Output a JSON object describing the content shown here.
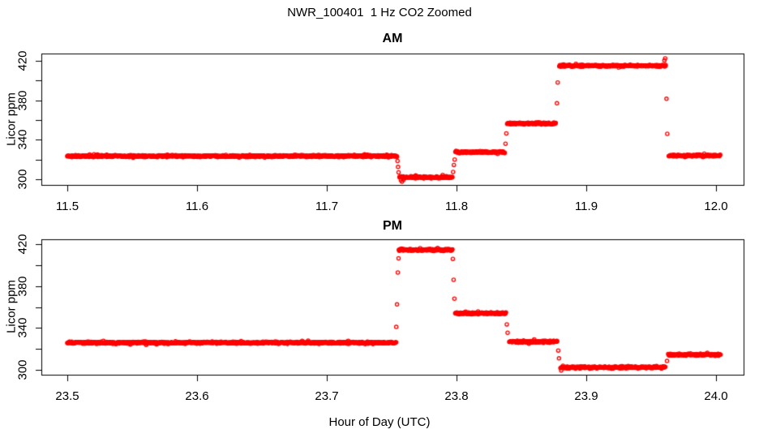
{
  "main_title": "NWR_100401  1 Hz CO2 Zoomed",
  "xlabel": "Hour of Day (UTC)",
  "background_color": "#FFFFFF",
  "axis_color": "#000000",
  "point_color": "#FF0000",
  "chart_data": [
    {
      "type": "scatter",
      "panel": "AM",
      "title": "AM",
      "ylabel": "Licor ppm",
      "marker": "open-circle",
      "sample_rate_hz": 1,
      "noise_ppm": 0.9,
      "xlim": [
        11.48,
        12.021
      ],
      "ylim": [
        294.3,
        427.4
      ],
      "xticks": [
        "11.5",
        "11.6",
        "11.7",
        "11.8",
        "11.9",
        "12.0"
      ],
      "yticks_major": [
        300,
        340,
        380,
        420
      ],
      "yticks_minor": [
        320,
        360,
        400
      ],
      "segments": [
        {
          "x_start": 11.5,
          "x_end": 11.754,
          "value": 323.5
        },
        {
          "x_start": 11.756,
          "x_end": 11.7965,
          "value": 302.0
        },
        {
          "x_start": 11.799,
          "x_end": 11.837,
          "value": 327.5
        },
        {
          "x_start": 11.839,
          "x_end": 11.8765,
          "value": 356.5
        },
        {
          "x_start": 11.879,
          "x_end": 11.961,
          "value": 415.0
        },
        {
          "x_start": 11.9635,
          "x_end": 12.003,
          "value": 324.0
        }
      ],
      "transition_points": [
        [
          11.7544,
          318.5
        ],
        [
          11.7548,
          312.5
        ],
        [
          11.7552,
          307.0
        ],
        [
          11.757,
          299.0
        ],
        [
          11.7578,
          297.5
        ],
        [
          11.759,
          299.5
        ],
        [
          11.7972,
          307.5
        ],
        [
          11.7978,
          314.5
        ],
        [
          11.7984,
          320.0
        ],
        [
          11.8376,
          336.0
        ],
        [
          11.8382,
          346.5
        ],
        [
          11.8772,
          377.0
        ],
        [
          11.8778,
          398.0
        ],
        [
          11.96,
          420.5
        ],
        [
          11.9606,
          422.5
        ],
        [
          11.9616,
          381.5
        ],
        [
          11.9622,
          346.0
        ]
      ]
    },
    {
      "type": "scatter",
      "panel": "PM",
      "title": "PM",
      "ylabel": "Licor ppm",
      "marker": "open-circle",
      "sample_rate_hz": 1,
      "noise_ppm": 0.9,
      "xlim": [
        23.48,
        24.021
      ],
      "ylim": [
        295.4,
        424.7
      ],
      "xticks": [
        "23.5",
        "23.6",
        "23.7",
        "23.8",
        "23.9",
        "24.0"
      ],
      "yticks_major": [
        300,
        340,
        380,
        420
      ],
      "yticks_minor": [
        320,
        360,
        400
      ],
      "segments": [
        {
          "x_start": 23.5,
          "x_end": 23.753,
          "value": 326.0
        },
        {
          "x_start": 23.7555,
          "x_end": 23.7965,
          "value": 414.5
        },
        {
          "x_start": 23.799,
          "x_end": 23.838,
          "value": 354.0
        },
        {
          "x_start": 23.8405,
          "x_end": 23.8775,
          "value": 327.0
        },
        {
          "x_start": 23.88,
          "x_end": 23.9605,
          "value": 302.5
        },
        {
          "x_start": 23.963,
          "x_end": 24.003,
          "value": 314.5
        }
      ],
      "transition_points": [
        [
          23.7534,
          341.0
        ],
        [
          23.754,
          362.5
        ],
        [
          23.7546,
          393.0
        ],
        [
          23.7552,
          406.5
        ],
        [
          23.797,
          406.0
        ],
        [
          23.7976,
          386.0
        ],
        [
          23.7982,
          368.0
        ],
        [
          23.8386,
          343.5
        ],
        [
          23.8392,
          335.5
        ],
        [
          23.8782,
          318.5
        ],
        [
          23.8788,
          311.0
        ],
        [
          23.8805,
          299.5
        ],
        [
          23.962,
          308.5
        ]
      ]
    }
  ]
}
